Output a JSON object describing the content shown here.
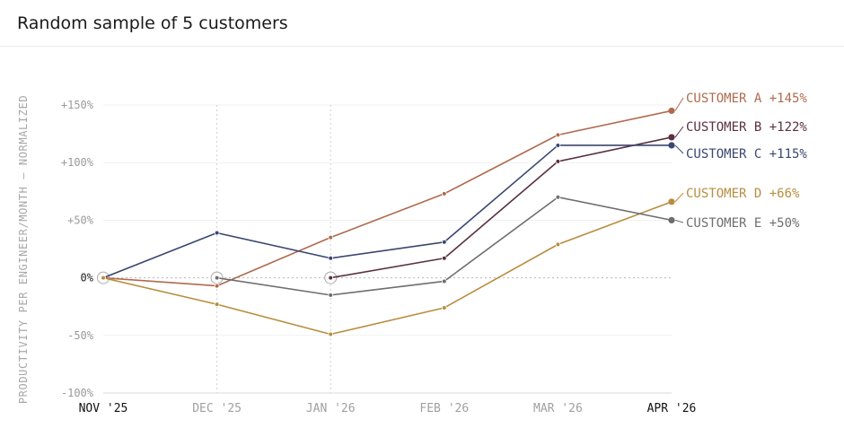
{
  "header": {
    "title": "Random sample of 5 customers"
  },
  "chart_data": {
    "type": "line",
    "title": "Random sample of 5 customers",
    "xlabel": "",
    "ylabel": "PRODUCTIVITY PER ENGINEER/MONTH — NORMALIZED",
    "categories": [
      "NOV '25",
      "DEC '25",
      "JAN '26",
      "FEB '26",
      "MAR '26",
      "APR '26"
    ],
    "bold_categories": [
      "NOV '25",
      "APR '26"
    ],
    "ylim": [
      -100,
      150
    ],
    "yticks": [
      150,
      100,
      50,
      0,
      -50,
      -100
    ],
    "ytick_labels": [
      "+150%",
      "+100%",
      "+50%",
      "0%",
      "-50%",
      "-100%"
    ],
    "grid": true,
    "zero_line": "dashed",
    "start_markers": [
      {
        "series": "CUSTOMER A",
        "category": "NOV '25"
      },
      {
        "series": "CUSTOMER E",
        "category": "DEC '25"
      },
      {
        "series": "CUSTOMER B",
        "category": "JAN '26"
      }
    ],
    "series": [
      {
        "name": "CUSTOMER A",
        "end_label": "CUSTOMER A +145%",
        "color": "#b06a4e",
        "values": [
          0,
          -7,
          35,
          73,
          124,
          145
        ]
      },
      {
        "name": "CUSTOMER B",
        "end_label": "CUSTOMER B +122%",
        "color": "#5a3040",
        "values": [
          null,
          null,
          0,
          17,
          101,
          122
        ]
      },
      {
        "name": "CUSTOMER C",
        "end_label": "CUSTOMER C +115%",
        "color": "#3a4670",
        "values": [
          0,
          39,
          17,
          31,
          115,
          115
        ]
      },
      {
        "name": "CUSTOMER D",
        "end_label": "CUSTOMER D +66%",
        "color": "#b88d3e",
        "values": [
          0,
          -23,
          -49,
          -26,
          29,
          66
        ]
      },
      {
        "name": "CUSTOMER E",
        "end_label": "CUSTOMER E +50%",
        "color": "#6e6e6e",
        "values": [
          null,
          0,
          -15,
          -3,
          70,
          50
        ]
      }
    ]
  }
}
